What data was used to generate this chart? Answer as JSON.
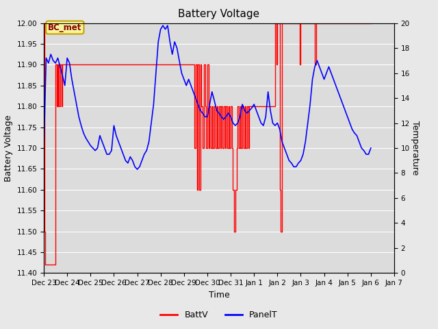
{
  "title": "Battery Voltage",
  "xlabel": "Time",
  "ylabel_left": "Battery Voltage",
  "ylabel_right": "Temperature",
  "ylim_left": [
    11.4,
    12.0
  ],
  "ylim_right": [
    0,
    20
  ],
  "annotation_text": "BC_met",
  "background_color": "#e8e8e8",
  "plot_bg_color": "#dcdcdc",
  "batt_color": "#ff0000",
  "panel_color": "#0000ff",
  "legend_batt": "BattV",
  "legend_panel": "PanelT",
  "title_fontsize": 11,
  "label_fontsize": 9,
  "tick_fontsize": 7.5,
  "batt_data": [
    [
      0.0,
      12.0
    ],
    [
      0.01,
      12.0
    ],
    [
      0.015,
      11.9
    ],
    [
      0.02,
      11.8
    ],
    [
      0.03,
      11.6
    ],
    [
      0.04,
      11.5
    ],
    [
      0.06,
      11.42
    ],
    [
      0.1,
      11.42
    ],
    [
      0.5,
      11.9
    ],
    [
      0.55,
      11.8
    ],
    [
      0.58,
      11.9
    ],
    [
      0.6,
      11.8
    ],
    [
      0.62,
      11.9
    ],
    [
      0.65,
      11.8
    ],
    [
      0.7,
      11.9
    ],
    [
      0.75,
      11.8
    ],
    [
      0.78,
      11.9
    ],
    [
      1.0,
      11.9
    ],
    [
      2.0,
      11.9
    ],
    [
      2.5,
      11.9
    ],
    [
      3.0,
      11.9
    ],
    [
      3.5,
      11.9
    ],
    [
      4.0,
      11.9
    ],
    [
      4.5,
      11.9
    ],
    [
      5.0,
      11.9
    ],
    [
      5.5,
      11.9
    ],
    [
      6.0,
      11.9
    ],
    [
      6.3,
      11.9
    ],
    [
      6.35,
      11.9
    ],
    [
      6.4,
      11.9
    ],
    [
      6.45,
      11.7
    ],
    [
      6.5,
      11.9
    ],
    [
      6.55,
      11.6
    ],
    [
      6.6,
      11.9
    ],
    [
      6.65,
      11.6
    ],
    [
      6.7,
      11.9
    ],
    [
      6.75,
      11.8
    ],
    [
      6.8,
      11.7
    ],
    [
      6.85,
      11.9
    ],
    [
      6.9,
      11.8
    ],
    [
      6.95,
      11.7
    ],
    [
      7.0,
      11.9
    ],
    [
      7.05,
      11.7
    ],
    [
      7.1,
      11.8
    ],
    [
      7.15,
      11.7
    ],
    [
      7.2,
      11.8
    ],
    [
      7.25,
      11.7
    ],
    [
      7.3,
      11.8
    ],
    [
      7.35,
      11.7
    ],
    [
      7.4,
      11.8
    ],
    [
      7.45,
      11.7
    ],
    [
      7.5,
      11.8
    ],
    [
      7.55,
      11.7
    ],
    [
      7.6,
      11.8
    ],
    [
      7.65,
      11.7
    ],
    [
      7.7,
      11.8
    ],
    [
      7.75,
      11.7
    ],
    [
      7.8,
      11.8
    ],
    [
      7.85,
      11.7
    ],
    [
      7.9,
      11.8
    ],
    [
      7.95,
      11.7
    ],
    [
      8.0,
      11.8
    ],
    [
      8.05,
      11.7
    ],
    [
      8.1,
      11.6
    ],
    [
      8.15,
      11.5
    ],
    [
      8.2,
      11.6
    ],
    [
      8.25,
      11.7
    ],
    [
      8.3,
      11.8
    ],
    [
      8.35,
      11.7
    ],
    [
      8.4,
      11.8
    ],
    [
      8.45,
      11.7
    ],
    [
      8.5,
      11.8
    ],
    [
      8.55,
      11.7
    ],
    [
      8.6,
      11.8
    ],
    [
      8.65,
      11.7
    ],
    [
      8.7,
      11.8
    ],
    [
      8.75,
      11.7
    ],
    [
      8.8,
      11.8
    ],
    [
      8.85,
      11.8
    ],
    [
      8.9,
      11.8
    ],
    [
      8.95,
      11.8
    ],
    [
      9.0,
      11.8
    ],
    [
      9.1,
      11.8
    ],
    [
      9.2,
      11.8
    ],
    [
      9.3,
      11.8
    ],
    [
      9.4,
      11.8
    ],
    [
      9.5,
      11.8
    ],
    [
      9.6,
      11.8
    ],
    [
      9.7,
      11.8
    ],
    [
      9.75,
      11.8
    ],
    [
      9.8,
      11.8
    ],
    [
      9.9,
      12.0
    ],
    [
      9.95,
      11.9
    ],
    [
      10.0,
      12.0
    ],
    [
      10.05,
      12.0
    ],
    [
      10.1,
      11.6
    ],
    [
      10.15,
      11.5
    ],
    [
      10.2,
      12.0
    ],
    [
      10.25,
      12.0
    ],
    [
      10.9,
      12.0
    ],
    [
      10.95,
      11.9
    ],
    [
      11.0,
      12.0
    ],
    [
      11.5,
      12.0
    ],
    [
      11.6,
      11.9
    ],
    [
      11.65,
      12.0
    ],
    [
      12.0,
      12.0
    ],
    [
      12.5,
      12.0
    ],
    [
      13.0,
      12.0
    ],
    [
      13.5,
      12.0
    ],
    [
      14.0,
      12.0
    ]
  ],
  "panel_data": [
    [
      0.0,
      10.0
    ],
    [
      0.1,
      17.2
    ],
    [
      0.2,
      16.8
    ],
    [
      0.3,
      17.5
    ],
    [
      0.4,
      17.0
    ],
    [
      0.5,
      16.8
    ],
    [
      0.6,
      17.2
    ],
    [
      0.7,
      16.5
    ],
    [
      0.8,
      15.8
    ],
    [
      0.9,
      15.0
    ],
    [
      1.0,
      17.2
    ],
    [
      1.1,
      16.8
    ],
    [
      1.2,
      15.5
    ],
    [
      1.3,
      14.5
    ],
    [
      1.4,
      13.5
    ],
    [
      1.5,
      12.5
    ],
    [
      1.6,
      11.8
    ],
    [
      1.7,
      11.2
    ],
    [
      1.8,
      10.8
    ],
    [
      1.9,
      10.5
    ],
    [
      2.0,
      10.2
    ],
    [
      2.1,
      10.0
    ],
    [
      2.2,
      9.8
    ],
    [
      2.3,
      10.0
    ],
    [
      2.4,
      11.0
    ],
    [
      2.5,
      10.5
    ],
    [
      2.6,
      10.0
    ],
    [
      2.7,
      9.5
    ],
    [
      2.8,
      9.5
    ],
    [
      2.9,
      9.8
    ],
    [
      3.0,
      11.8
    ],
    [
      3.1,
      11.0
    ],
    [
      3.2,
      10.5
    ],
    [
      3.3,
      10.0
    ],
    [
      3.4,
      9.5
    ],
    [
      3.5,
      9.0
    ],
    [
      3.6,
      8.8
    ],
    [
      3.7,
      9.3
    ],
    [
      3.8,
      9.0
    ],
    [
      3.9,
      8.5
    ],
    [
      4.0,
      8.3
    ],
    [
      4.1,
      8.5
    ],
    [
      4.2,
      9.0
    ],
    [
      4.3,
      9.5
    ],
    [
      4.4,
      9.8
    ],
    [
      4.5,
      10.5
    ],
    [
      4.6,
      12.0
    ],
    [
      4.7,
      13.5
    ],
    [
      4.8,
      16.0
    ],
    [
      4.9,
      18.5
    ],
    [
      5.0,
      19.5
    ],
    [
      5.1,
      19.8
    ],
    [
      5.2,
      19.5
    ],
    [
      5.3,
      19.8
    ],
    [
      5.4,
      18.5
    ],
    [
      5.5,
      17.5
    ],
    [
      5.6,
      18.5
    ],
    [
      5.7,
      18.0
    ],
    [
      5.8,
      17.0
    ],
    [
      5.9,
      16.0
    ],
    [
      6.0,
      15.5
    ],
    [
      6.1,
      15.0
    ],
    [
      6.2,
      15.5
    ],
    [
      6.3,
      15.0
    ],
    [
      6.4,
      14.5
    ],
    [
      6.5,
      14.0
    ],
    [
      6.6,
      13.5
    ],
    [
      6.7,
      13.0
    ],
    [
      6.8,
      12.8
    ],
    [
      6.9,
      12.5
    ],
    [
      7.0,
      12.5
    ],
    [
      7.1,
      13.5
    ],
    [
      7.2,
      14.5
    ],
    [
      7.3,
      13.8
    ],
    [
      7.4,
      13.0
    ],
    [
      7.5,
      12.8
    ],
    [
      7.6,
      12.5
    ],
    [
      7.7,
      12.3
    ],
    [
      7.8,
      12.5
    ],
    [
      7.9,
      12.8
    ],
    [
      8.0,
      12.5
    ],
    [
      8.1,
      12.0
    ],
    [
      8.2,
      11.8
    ],
    [
      8.3,
      12.0
    ],
    [
      8.4,
      12.5
    ],
    [
      8.5,
      13.5
    ],
    [
      8.6,
      13.0
    ],
    [
      8.7,
      12.8
    ],
    [
      8.8,
      13.0
    ],
    [
      8.9,
      13.2
    ],
    [
      9.0,
      13.5
    ],
    [
      9.1,
      13.0
    ],
    [
      9.2,
      12.5
    ],
    [
      9.3,
      12.0
    ],
    [
      9.4,
      11.8
    ],
    [
      9.5,
      12.5
    ],
    [
      9.6,
      14.5
    ],
    [
      9.7,
      13.0
    ],
    [
      9.8,
      12.0
    ],
    [
      9.9,
      11.8
    ],
    [
      10.0,
      12.0
    ],
    [
      10.1,
      11.5
    ],
    [
      10.2,
      10.5
    ],
    [
      10.3,
      10.0
    ],
    [
      10.4,
      9.5
    ],
    [
      10.5,
      9.0
    ],
    [
      10.6,
      8.8
    ],
    [
      10.7,
      8.5
    ],
    [
      10.8,
      8.5
    ],
    [
      10.9,
      8.8
    ],
    [
      11.0,
      9.0
    ],
    [
      11.1,
      9.5
    ],
    [
      11.2,
      10.5
    ],
    [
      11.3,
      12.0
    ],
    [
      11.4,
      13.5
    ],
    [
      11.5,
      15.5
    ],
    [
      11.6,
      16.5
    ],
    [
      11.7,
      17.0
    ],
    [
      11.8,
      16.5
    ],
    [
      11.9,
      16.0
    ],
    [
      12.0,
      15.5
    ],
    [
      12.1,
      16.0
    ],
    [
      12.2,
      16.5
    ],
    [
      12.3,
      16.0
    ],
    [
      12.4,
      15.5
    ],
    [
      12.5,
      15.0
    ],
    [
      12.6,
      14.5
    ],
    [
      12.7,
      14.0
    ],
    [
      12.8,
      13.5
    ],
    [
      12.9,
      13.0
    ],
    [
      13.0,
      12.5
    ],
    [
      13.1,
      12.0
    ],
    [
      13.2,
      11.5
    ],
    [
      13.3,
      11.2
    ],
    [
      13.4,
      11.0
    ],
    [
      13.5,
      10.5
    ],
    [
      13.6,
      10.0
    ],
    [
      13.7,
      9.8
    ],
    [
      13.8,
      9.5
    ],
    [
      13.9,
      9.5
    ],
    [
      14.0,
      10.0
    ]
  ],
  "x_tick_labels": [
    "Dec 23",
    "Dec 24",
    "Dec 25",
    "Dec 26",
    "Dec 27",
    "Dec 28",
    "Dec 29",
    "Dec 30",
    "Dec 31",
    "Jan 1",
    "Jan 2",
    "Jan 3",
    "Jan 4",
    "Jan 5",
    "Jan 6",
    "Jan 7"
  ],
  "x_tick_positions": [
    0,
    1,
    2,
    3,
    4,
    5,
    6,
    7,
    8,
    9,
    10,
    11,
    12,
    13,
    14,
    15
  ],
  "yticks_left": [
    11.4,
    11.45,
    11.5,
    11.55,
    11.6,
    11.65,
    11.7,
    11.75,
    11.8,
    11.85,
    11.9,
    11.95,
    12.0
  ],
  "yticks_right": [
    0,
    2,
    4,
    6,
    8,
    10,
    12,
    14,
    16,
    18,
    20
  ],
  "xlim": [
    0,
    15
  ]
}
